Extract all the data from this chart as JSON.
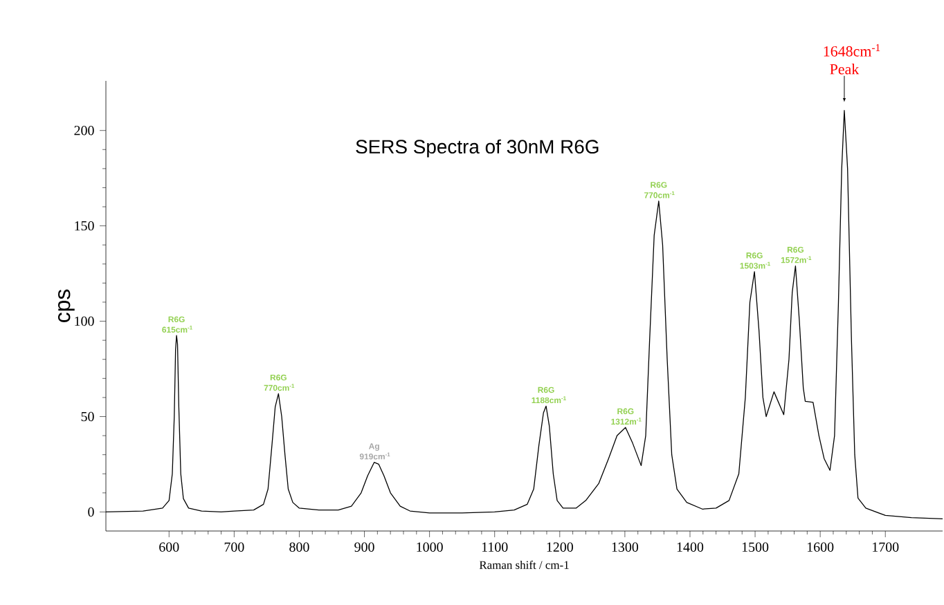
{
  "chart_data": {
    "type": "line",
    "title": "SERS Spectra of 30nM R6G",
    "xlabel": "Raman shift / cm-1",
    "ylabel": "cps",
    "xlim": [
      503,
      1788
    ],
    "ylim": [
      -10,
      226
    ],
    "xticks": [
      600,
      700,
      800,
      900,
      1000,
      1100,
      1200,
      1300,
      1400,
      1500,
      1600,
      1700
    ],
    "yticks": [
      0,
      50,
      100,
      150,
      200
    ],
    "grid": false,
    "series": [
      {
        "color": "#000000",
        "x": [
          503,
          560,
          590,
          600,
          605,
          608,
          610,
          611.5,
          613,
          615,
          618,
          622,
          630,
          650,
          680,
          700,
          730,
          745,
          752,
          758,
          763,
          768,
          773,
          778,
          783,
          790,
          800,
          830,
          860,
          880,
          895,
          905,
          915,
          922,
          930,
          940,
          955,
          970,
          1000,
          1050,
          1100,
          1130,
          1150,
          1160,
          1168,
          1175,
          1179,
          1184,
          1190,
          1196,
          1205,
          1225,
          1240,
          1260,
          1275,
          1288,
          1301,
          1312,
          1325,
          1332,
          1338,
          1345,
          1352,
          1358,
          1365,
          1372,
          1380,
          1395,
          1419,
          1440,
          1460,
          1475,
          1485,
          1492,
          1499,
          1506,
          1512,
          1517,
          1529,
          1544,
          1552,
          1557,
          1562,
          1568,
          1574,
          1577,
          1589,
          1598,
          1606,
          1615,
          1622,
          1628,
          1633,
          1637,
          1642,
          1648,
          1653,
          1658,
          1670,
          1700,
          1740,
          1788
        ],
        "values": [
          0,
          0.5,
          2,
          6,
          20,
          50,
          85,
          92.5,
          88,
          55,
          20,
          7,
          2,
          0.5,
          0,
          0.5,
          1,
          4,
          12,
          35,
          55,
          62,
          50,
          30,
          12,
          5,
          2,
          1,
          1,
          3,
          10,
          19,
          26,
          25,
          19,
          10,
          3,
          0.5,
          -0.5,
          -0.5,
          0,
          1,
          4,
          12,
          35,
          52,
          55.5,
          45,
          20,
          6,
          2,
          2,
          6,
          15,
          28,
          40,
          44.3,
          36,
          24.3,
          40,
          90,
          145,
          163,
          140,
          80,
          30,
          12,
          5,
          1.5,
          2,
          6,
          20,
          60,
          110,
          126,
          95,
          60,
          50,
          63,
          51,
          80,
          115,
          129,
          100,
          65,
          58,
          57.5,
          40,
          28,
          21.8,
          40,
          110,
          180,
          210.5,
          180,
          90,
          30,
          7.3,
          2,
          -1.8,
          -3,
          -3.6
        ]
      }
    ],
    "annotations": [
      {
        "text": "R6G 615cm$^{-1}$",
        "x": 611.5,
        "y": 92.5
      },
      {
        "text": "R6G 770cm$^{-1}$",
        "x": 768,
        "y": 62
      },
      {
        "text": "Ag 919cm$^{-1}$",
        "x": 915,
        "y": 26
      },
      {
        "text": "R6G 1188cm$^{-1}$",
        "x": 1179,
        "y": 55.5
      },
      {
        "text": "R6G 1312m$^{-1}$",
        "x": 1301,
        "y": 44.3
      },
      {
        "text": "R6G 770cm$^{-1}$",
        "x": 1352,
        "y": 163
      },
      {
        "text": "R6G 1503m$^{-1}$",
        "x": 1499,
        "y": 126
      },
      {
        "text": "R6G 1572m$^{-1}$",
        "x": 1562,
        "y": 129
      },
      "1648cm$^{-1}$ Peak"
    ]
  }
}
